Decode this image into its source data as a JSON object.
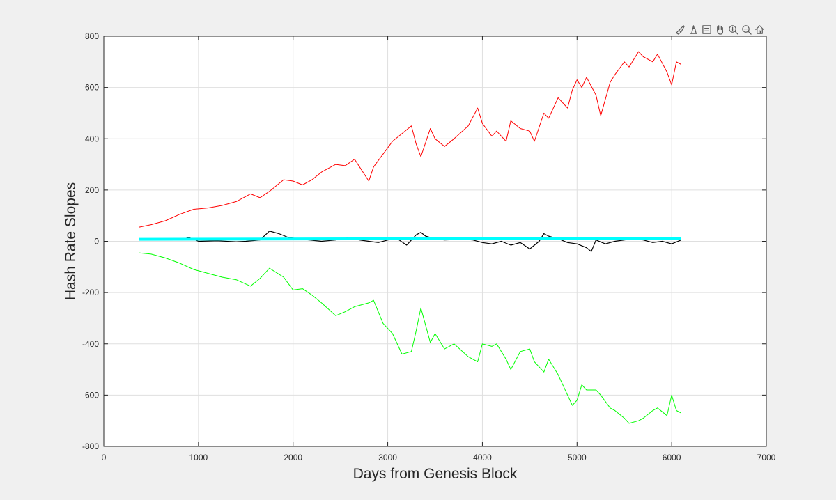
{
  "toolbar": {
    "icons": [
      "brush-icon",
      "data-tips-icon",
      "legend-icon",
      "pan-hand-icon",
      "zoom-in-icon",
      "zoom-out-icon",
      "home-icon"
    ]
  },
  "chart_data": {
    "type": "line",
    "xlabel": "Days from Genesis Block",
    "ylabel": "Hash Rate Slopes",
    "xlim": [
      0,
      7000
    ],
    "ylim": [
      -800,
      800
    ],
    "xticks": [
      0,
      1000,
      2000,
      3000,
      4000,
      5000,
      6000,
      7000
    ],
    "yticks": [
      -800,
      -600,
      -400,
      -200,
      0,
      200,
      400,
      600,
      800
    ],
    "grid": true,
    "background": "#ffffff",
    "series": [
      {
        "color": "#ff0000",
        "line_width": 1,
        "x": [
          370,
          500,
          650,
          800,
          950,
          1100,
          1250,
          1400,
          1550,
          1650,
          1750,
          1900,
          2000,
          2100,
          2200,
          2300,
          2450,
          2550,
          2650,
          2800,
          2850,
          2950,
          3050,
          3150,
          3250,
          3300,
          3350,
          3450,
          3500,
          3600,
          3700,
          3850,
          3950,
          4000,
          4100,
          4150,
          4250,
          4300,
          4400,
          4500,
          4550,
          4650,
          4700,
          4800,
          4900,
          4950,
          5000,
          5050,
          5100,
          5200,
          5250,
          5350,
          5400,
          5500,
          5550,
          5650,
          5700,
          5800,
          5850,
          5950,
          6000,
          6050,
          6100
        ],
        "y": [
          55,
          65,
          80,
          105,
          125,
          130,
          140,
          155,
          185,
          170,
          195,
          240,
          235,
          220,
          240,
          270,
          300,
          295,
          320,
          235,
          290,
          340,
          390,
          420,
          450,
          380,
          330,
          440,
          400,
          370,
          400,
          450,
          520,
          460,
          410,
          430,
          390,
          470,
          440,
          430,
          390,
          500,
          480,
          560,
          520,
          590,
          630,
          600,
          640,
          570,
          490,
          620,
          650,
          700,
          680,
          740,
          720,
          700,
          730,
          660,
          610,
          700,
          690
        ]
      },
      {
        "color": "#00ff00",
        "line_width": 1,
        "x": [
          370,
          500,
          650,
          800,
          950,
          1100,
          1250,
          1400,
          1550,
          1650,
          1750,
          1900,
          2000,
          2100,
          2200,
          2300,
          2450,
          2550,
          2650,
          2800,
          2850,
          2950,
          3050,
          3150,
          3250,
          3300,
          3350,
          3450,
          3500,
          3600,
          3700,
          3850,
          3950,
          4000,
          4100,
          4150,
          4250,
          4300,
          4400,
          4500,
          4550,
          4650,
          4700,
          4800,
          4900,
          4950,
          5000,
          5050,
          5100,
          5200,
          5250,
          5350,
          5400,
          5500,
          5550,
          5650,
          5700,
          5800,
          5850,
          5950,
          6000,
          6050,
          6100
        ],
        "y": [
          -45,
          -50,
          -65,
          -85,
          -110,
          -125,
          -140,
          -150,
          -175,
          -145,
          -105,
          -140,
          -190,
          -185,
          -210,
          -240,
          -290,
          -275,
          -255,
          -240,
          -230,
          -320,
          -360,
          -440,
          -430,
          -350,
          -260,
          -395,
          -360,
          -420,
          -400,
          -450,
          -470,
          -400,
          -410,
          -400,
          -460,
          -500,
          -430,
          -420,
          -470,
          -510,
          -460,
          -520,
          -600,
          -640,
          -620,
          -560,
          -580,
          -580,
          -600,
          -650,
          -660,
          -690,
          -710,
          -700,
          -690,
          -660,
          -650,
          -680,
          -600,
          -660,
          -670
        ]
      },
      {
        "color": "#000000",
        "line_width": 1.2,
        "x": [
          370,
          600,
          800,
          900,
          1000,
          1200,
          1400,
          1500,
          1650,
          1750,
          1850,
          1950,
          2100,
          2300,
          2450,
          2600,
          2700,
          2800,
          2900,
          3000,
          3100,
          3200,
          3250,
          3300,
          3350,
          3400,
          3500,
          3600,
          3800,
          3900,
          4000,
          4100,
          4200,
          4300,
          4400,
          4500,
          4600,
          4650,
          4700,
          4800,
          4900,
          5000,
          5100,
          5150,
          5200,
          5300,
          5400,
          5500,
          5600,
          5700,
          5800,
          5900,
          6000,
          6100
        ],
        "y": [
          5,
          8,
          5,
          15,
          0,
          2,
          -2,
          0,
          5,
          40,
          30,
          15,
          8,
          0,
          5,
          15,
          5,
          0,
          -5,
          5,
          10,
          -15,
          5,
          25,
          35,
          20,
          10,
          5,
          8,
          5,
          -5,
          -10,
          0,
          -15,
          -5,
          -30,
          0,
          30,
          20,
          10,
          -5,
          -10,
          -25,
          -40,
          5,
          -10,
          0,
          5,
          10,
          5,
          -5,
          0,
          -10,
          5
        ]
      },
      {
        "color": "#00ffff",
        "line_width": 4,
        "x": [
          370,
          6100
        ],
        "y": [
          8,
          12
        ]
      }
    ]
  }
}
